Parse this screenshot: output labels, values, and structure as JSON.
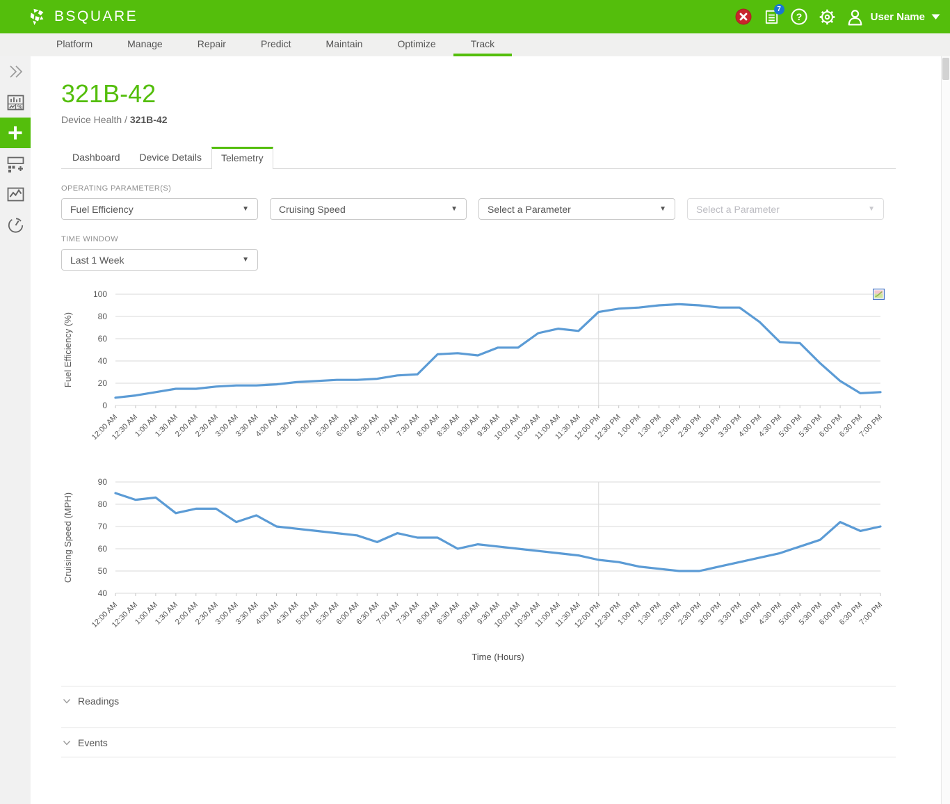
{
  "colors": {
    "accent_green": "#54BE0C",
    "chart_line_blue": "#5B9BD5",
    "alert_red": "#C8262C",
    "badge_blue": "#1976D2",
    "grid_gray": "#d9d9d9"
  },
  "header": {
    "brand": "BSQUARE",
    "logo_icon": "bsquare-burst-icon",
    "user_name": "User Name",
    "icons": [
      {
        "name": "alerts-icon",
        "label": "alerts"
      },
      {
        "name": "notifications-icon",
        "label": "notifications",
        "badge": "7"
      },
      {
        "name": "help-icon",
        "label": "help"
      },
      {
        "name": "settings-icon",
        "label": "settings"
      },
      {
        "name": "user-icon",
        "label": "user"
      }
    ]
  },
  "nav": {
    "items": [
      "Platform",
      "Manage",
      "Repair",
      "Predict",
      "Maintain",
      "Optimize",
      "Track"
    ],
    "active": "Track"
  },
  "sidebar": {
    "items": [
      {
        "name": "expand-sidebar",
        "icon": "chevrons-right-icon",
        "active": false
      },
      {
        "name": "stats-dashboard",
        "icon": "stats-icon",
        "active": false
      },
      {
        "name": "add-new",
        "icon": "plus-icon",
        "active": true
      },
      {
        "name": "add-widget",
        "icon": "widget-add-icon",
        "active": false
      },
      {
        "name": "charts-view",
        "icon": "line-chart-icon",
        "active": false
      },
      {
        "name": "gauge-view",
        "icon": "gauge-icon",
        "active": false
      }
    ]
  },
  "page": {
    "title": "321B-42",
    "breadcrumb_prefix": "Device Health / ",
    "breadcrumb_current": "321B-42",
    "tabs": [
      "Dashboard",
      "Device Details",
      "Telemetry"
    ],
    "active_tab": "Telemetry"
  },
  "filters": {
    "operating_parameters_label": "OPERATING PARAMETER(S)",
    "parameter_dropdowns": [
      {
        "value": "Fuel Efficiency",
        "disabled": false
      },
      {
        "value": "Cruising Speed",
        "disabled": false
      },
      {
        "value": "Select a Parameter",
        "disabled": false
      },
      {
        "value": "Select a Parameter",
        "disabled": true
      }
    ],
    "time_window_label": "TIME WINDOW",
    "time_window_value": "Last 1 Week"
  },
  "chart_data": [
    {
      "type": "line",
      "ylabel": "Fuel Efficiency (%)",
      "ylim": [
        0,
        100
      ],
      "yticks": [
        0,
        20,
        40,
        60,
        80,
        100
      ],
      "grid": true,
      "legend": "none",
      "vline_at": "12:00 PM",
      "line_color": "#5B9BD5",
      "x": [
        "12:00 AM",
        "12:30 AM",
        "1:00 AM",
        "1:30 AM",
        "2:00 AM",
        "2:30 AM",
        "3:00 AM",
        "3:30 AM",
        "4:00 AM",
        "4:30 AM",
        "5:00 AM",
        "5:30 AM",
        "6:00 AM",
        "6:30 AM",
        "7:00 AM",
        "7:30 AM",
        "8:00 AM",
        "8:30 AM",
        "9:00 AM",
        "9:30 AM",
        "10:00 AM",
        "10:30 AM",
        "11:00 AM",
        "11:30 AM",
        "12:00 PM",
        "12:30 PM",
        "1:00 PM",
        "1:30 PM",
        "2:00 PM",
        "2:30 PM",
        "3:00 PM",
        "3:30 PM",
        "4:00 PM",
        "4:30 PM",
        "5:00 PM",
        "5:30 PM",
        "6:00 PM",
        "6:30 PM",
        "7:00 PM"
      ],
      "values": [
        7,
        9,
        12,
        15,
        15,
        17,
        18,
        18,
        19,
        21,
        22,
        23,
        23,
        24,
        27,
        28,
        46,
        47,
        45,
        52,
        52,
        65,
        69,
        67,
        84,
        87,
        88,
        90,
        91,
        90,
        88,
        88,
        75,
        57,
        56,
        38,
        22,
        11,
        12
      ]
    },
    {
      "type": "line",
      "ylabel": "Cruising Speed (MPH)",
      "xlabel": "Time (Hours)",
      "ylim": [
        40,
        90
      ],
      "yticks": [
        40,
        50,
        60,
        70,
        80,
        90
      ],
      "grid": true,
      "legend": "none",
      "vline_at": "12:00 PM",
      "line_color": "#5B9BD5",
      "x": [
        "12:00 AM",
        "12:30 AM",
        "1:00 AM",
        "1:30 AM",
        "2:00 AM",
        "2:30 AM",
        "3:00 AM",
        "3:30 AM",
        "4:00 AM",
        "4:30 AM",
        "5:00 AM",
        "5:30 AM",
        "6:00 AM",
        "6:30 AM",
        "7:00 AM",
        "7:30 AM",
        "8:00 AM",
        "8:30 AM",
        "9:00 AM",
        "9:30 AM",
        "10:00 AM",
        "10:30 AM",
        "11:00 AM",
        "11:30 AM",
        "12:00 PM",
        "12:30 PM",
        "1:00 PM",
        "1:30 PM",
        "2:00 PM",
        "2:30 PM",
        "3:00 PM",
        "3:30 PM",
        "4:00 PM",
        "4:30 PM",
        "5:00 PM",
        "5:30 PM",
        "6:00 PM",
        "6:30 PM",
        "7:00 PM"
      ],
      "values": [
        85,
        82,
        83,
        76,
        78,
        78,
        72,
        75,
        70,
        69,
        68,
        67,
        66,
        63,
        67,
        65,
        65,
        60,
        62,
        61,
        60,
        59,
        58,
        57,
        55,
        54,
        52,
        51,
        50,
        50,
        52,
        54,
        56,
        58,
        61,
        64,
        72,
        68,
        70
      ]
    }
  ],
  "chart_menu_icon": "chart-menu-icon",
  "axis_label": "Time (Hours)",
  "sections": {
    "readings_label": "Readings",
    "events_label": "Events"
  }
}
